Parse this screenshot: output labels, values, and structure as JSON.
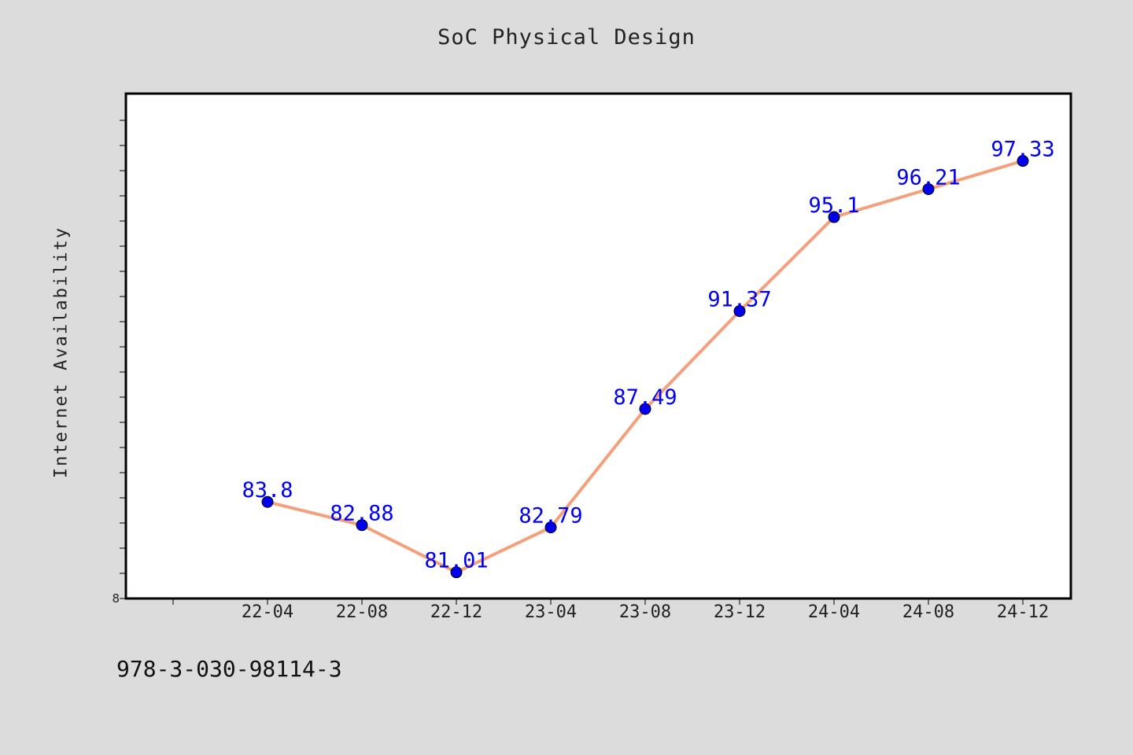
{
  "chart_data": {
    "type": "line",
    "title": "SoC Physical Design",
    "xlabel": "",
    "ylabel": "Internet Availability",
    "categories": [
      "22-04",
      "22-08",
      "22-12",
      "23-04",
      "23-08",
      "23-12",
      "24-04",
      "24-08",
      "24-12"
    ],
    "series": [
      {
        "values": [
          83.8,
          82.88,
          81.01,
          82.79,
          87.49,
          91.37,
          95.1,
          96.21,
          97.33
        ],
        "data_labels": [
          "83.8",
          "82.88",
          "81.01",
          "82.79",
          "87.49",
          "91.37",
          "95.1",
          "96.21",
          "97.33"
        ],
        "line_color": "#f4a07c",
        "marker_color": "#0000ee",
        "label_color": "#0000ee"
      }
    ],
    "y_tick_label": "8",
    "ylim": [
      79.97,
      100
    ],
    "grid": false,
    "legend": "none"
  },
  "footer": {
    "code": "978-3-030-98114-3"
  },
  "colors": {
    "background": "#dcdcdc",
    "plot_background": "#ffffff"
  }
}
